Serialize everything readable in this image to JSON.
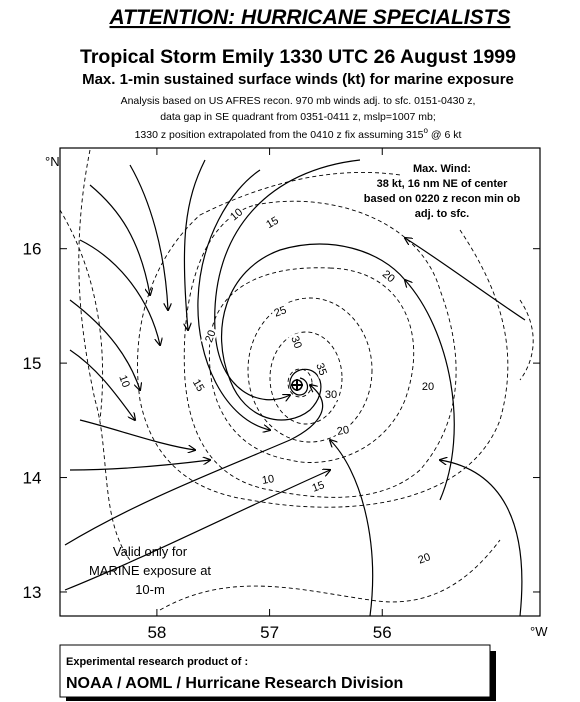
{
  "header": {
    "attention": "ATTENTION: HURRICANE SPECIALISTS",
    "title": "Tropical Storm Emily 1330 UTC 26 August 1999",
    "subtitle": "Max. 1-min sustained surface winds (kt) for marine exposure",
    "note_line1": "Analysis based on US AFRES recon. 970 mb winds adj. to sfc. 0151-0430 z,",
    "note_line2": "data gap in SE quadrant from 0351-0411 z, mslp=1007 mb;",
    "note_line3_a": "1330 z position extrapolated from the 0410 z fix assuming 315",
    "note_line3_sup": "o",
    "note_line3_b": " @ 6 kt"
  },
  "map": {
    "xlim": [
      58.86,
      54.6
    ],
    "ylim": [
      12.79,
      16.88
    ],
    "xticks": [
      58,
      57,
      56
    ],
    "yticks": [
      16,
      15,
      14,
      13
    ],
    "y_unit": "°N",
    "x_unit": "°W",
    "isotach_labels": [
      10,
      15,
      20,
      25,
      30,
      35,
      30,
      20,
      10,
      15,
      20,
      20,
      10,
      15,
      20
    ],
    "max_wind": [
      "Max. Wind:",
      "38 kt, 16 nm NE of center",
      "based on 0220 z recon min ob",
      "adj. to sfc."
    ],
    "valid_note": [
      "Valid only for",
      "MARINE exposure at",
      "10-m"
    ]
  },
  "footer": {
    "line1": "Experimental research product of :",
    "line2": "NOAA / AOML / Hurricane Research Division"
  }
}
